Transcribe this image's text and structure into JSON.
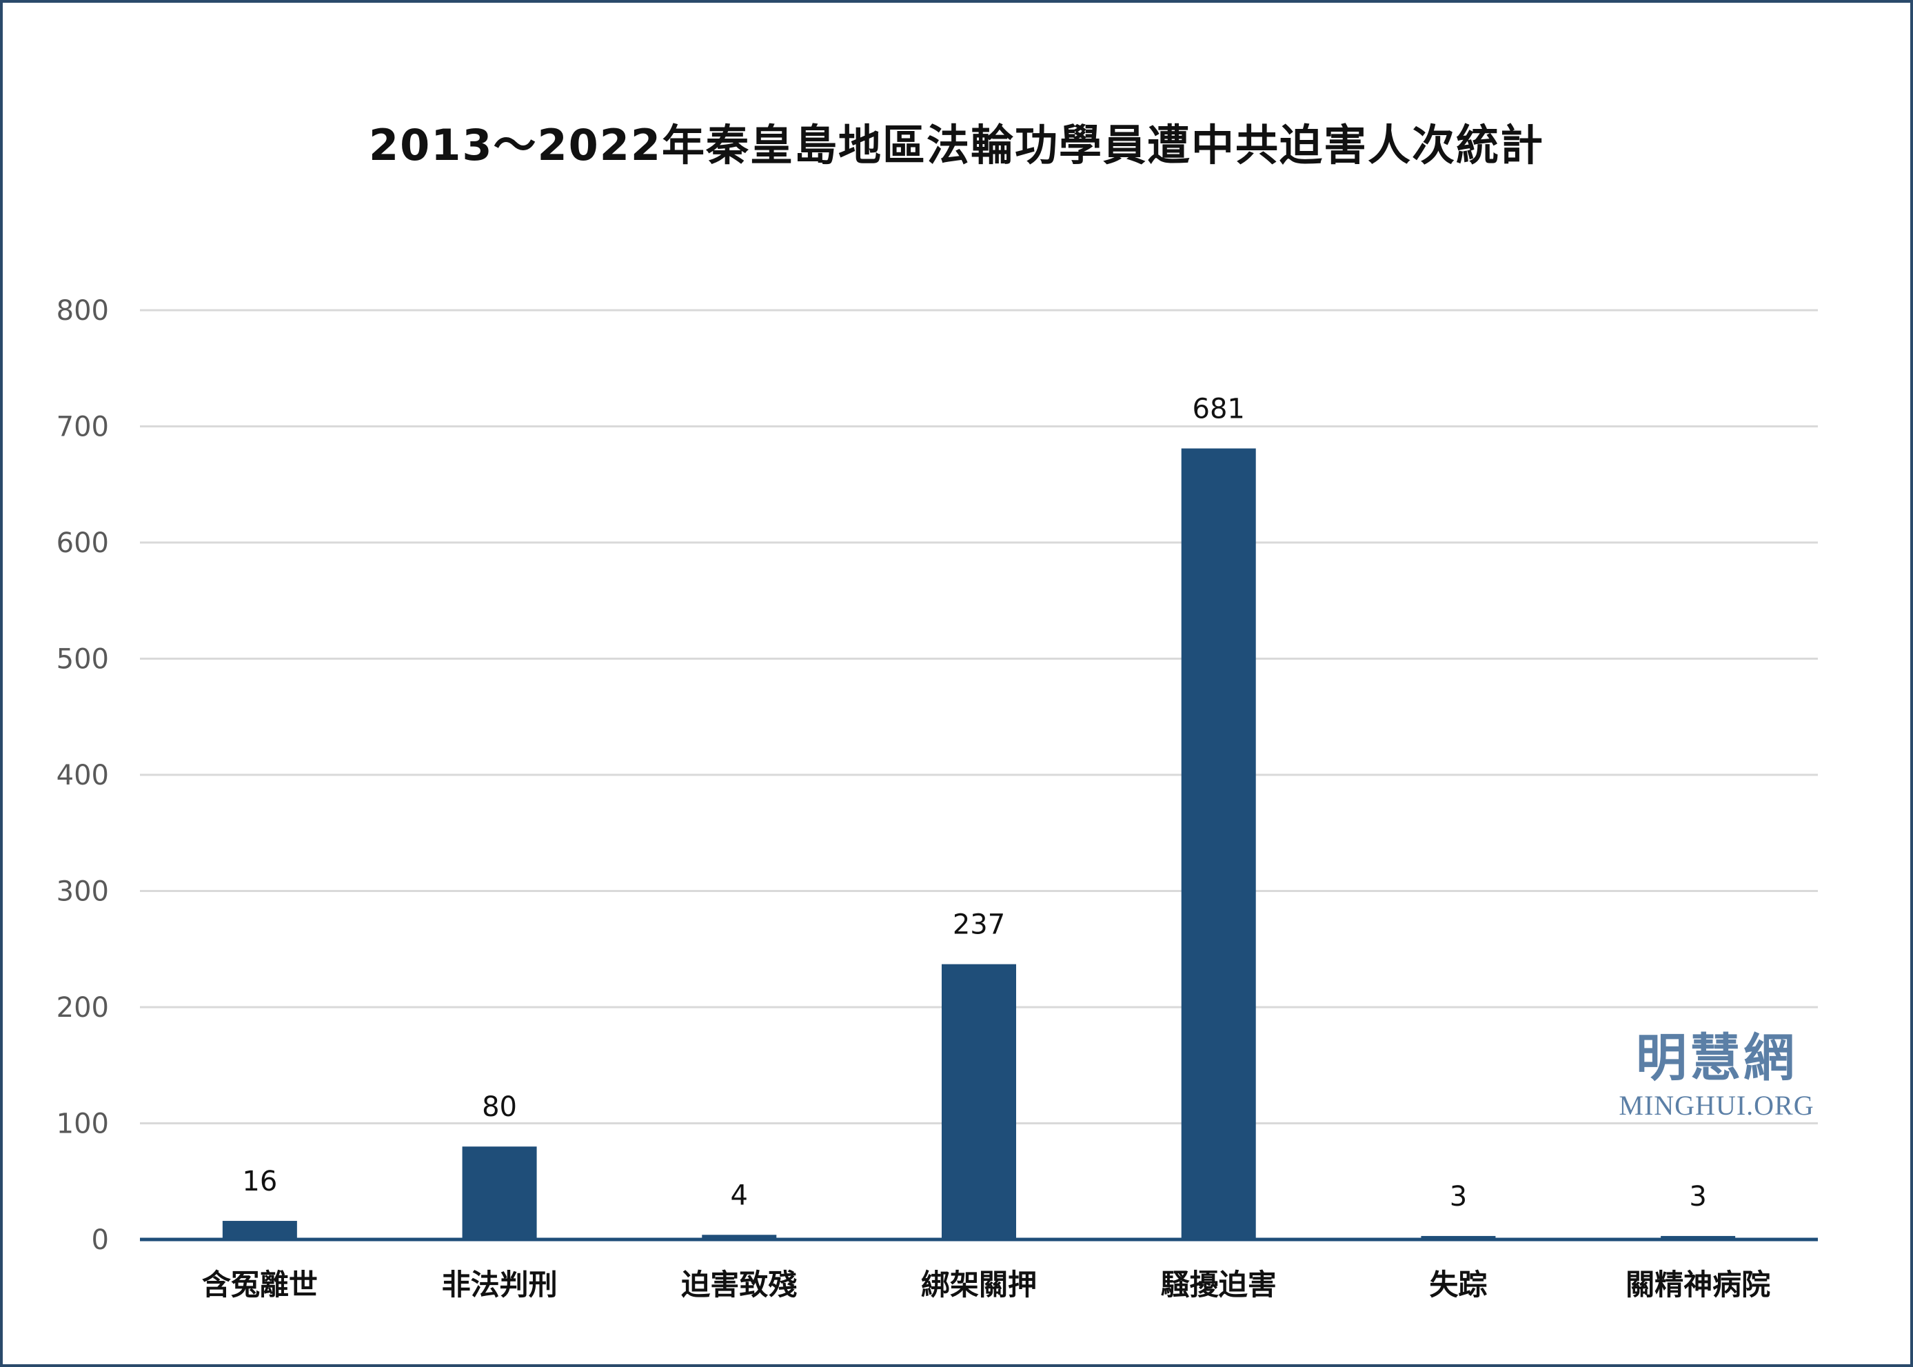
{
  "chart_data": {
    "type": "bar",
    "title": "2013～2022年秦皇島地區法輪功學員遭中共迫害人次統計",
    "categories": [
      "含冤離世",
      "非法判刑",
      "迫害致殘",
      "綁架關押",
      "騷擾迫害",
      "失踪",
      "關精神病院"
    ],
    "values": [
      16,
      80,
      4,
      237,
      681,
      3,
      3
    ],
    "data_labels": [
      "16",
      "80",
      "4",
      "237",
      "681",
      "3",
      "3"
    ],
    "ylim": [
      0,
      800
    ],
    "yticks": [
      0,
      100,
      200,
      300,
      400,
      500,
      600,
      700,
      800
    ],
    "grid": true,
    "xlabel": "",
    "ylabel": "",
    "bar_color": "#1f4e79"
  },
  "watermark": {
    "chinese": "明慧網",
    "english": "MINGHUI.ORG"
  },
  "colors": {
    "frame_border": "#2b4a6b",
    "gridline": "#d9d9d9",
    "axis_tick_text": "#595959",
    "watermark": "#5b7fa6"
  }
}
